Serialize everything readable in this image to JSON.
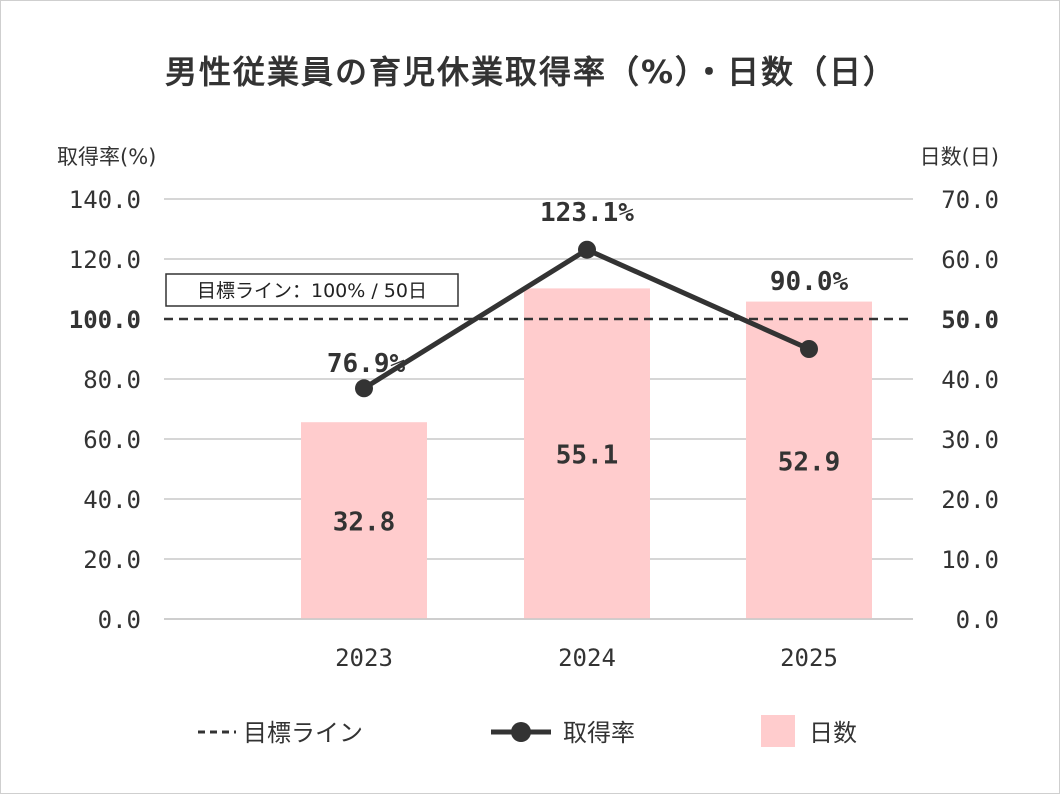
{
  "chart_data": {
    "type": "bar+line",
    "title": "男性従業員の育児休業取得率（%）・日数（日）",
    "categories": [
      "2023",
      "2024",
      "2025"
    ],
    "left_axis": {
      "title": "取得率(%)",
      "ylim": [
        0,
        140
      ],
      "ticks": [
        "0.0",
        "20.0",
        "40.0",
        "60.0",
        "80.0",
        "100.0",
        "120.0",
        "140.0"
      ]
    },
    "right_axis": {
      "title": "日数(日)",
      "ylim": [
        0,
        70
      ],
      "ticks": [
        "0.0",
        "10.0",
        "20.0",
        "30.0",
        "40.0",
        "50.0",
        "60.0",
        "70.0"
      ]
    },
    "series": [
      {
        "name": "日数",
        "type": "bar",
        "axis": "right",
        "values": [
          32.8,
          55.1,
          52.9
        ],
        "labels": [
          "32.8",
          "55.1",
          "52.9"
        ],
        "color": "#ffcccd"
      },
      {
        "name": "取得率",
        "type": "line",
        "axis": "left",
        "values": [
          76.9,
          123.1,
          90.0
        ],
        "labels": [
          "76.9%",
          "123.1%",
          "90.0%"
        ],
        "color": "#333333"
      }
    ],
    "target_line": {
      "name": "目標ライン",
      "label": "目標ライン：100% / 50日",
      "left_value": 100,
      "right_value": 50,
      "style": "dashed"
    },
    "grid": true,
    "legend_position": "bottom",
    "legend": [
      "目標ライン",
      "取得率",
      "日数"
    ]
  }
}
